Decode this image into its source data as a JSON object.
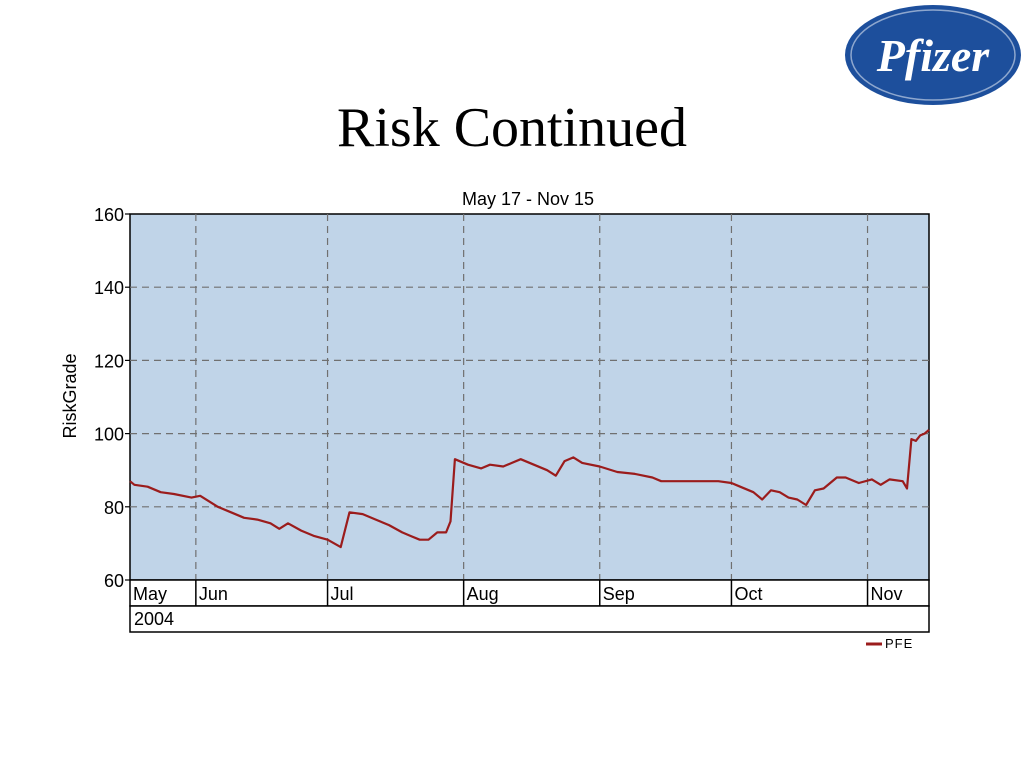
{
  "slide": {
    "title": "Risk Continued",
    "logo_text": "Pfizer",
    "logo_color": "#1d4f9c"
  },
  "chart_data": {
    "type": "line",
    "title": "May 17  -  Nov 15",
    "ylabel": "RiskGrade",
    "xlabel": "",
    "ylim": [
      60,
      160
    ],
    "yticks": [
      60,
      80,
      100,
      120,
      140,
      160
    ],
    "grid": true,
    "plot_background": "#c0d4e8",
    "legend_position": "bottom-right",
    "x_range": [
      "2004-05-17",
      "2004-11-15"
    ],
    "month_labels": [
      {
        "label": "May",
        "date": "2004-05-17"
      },
      {
        "label": "Jun",
        "date": "2004-06-01"
      },
      {
        "label": "Jul",
        "date": "2004-07-01"
      },
      {
        "label": "Aug",
        "date": "2004-08-01"
      },
      {
        "label": "Sep",
        "date": "2004-09-01"
      },
      {
        "label": "Oct",
        "date": "2004-10-01"
      },
      {
        "label": "Nov",
        "date": "2004-11-01"
      }
    ],
    "year_label": "2004",
    "series": [
      {
        "name": "PFE",
        "color": "#9b1c1c",
        "points": [
          [
            "2004-05-17",
            87
          ],
          [
            "2004-05-18",
            86
          ],
          [
            "2004-05-21",
            85.5
          ],
          [
            "2004-05-24",
            84
          ],
          [
            "2004-05-27",
            83.5
          ],
          [
            "2004-05-31",
            82.5
          ],
          [
            "2004-06-02",
            83
          ],
          [
            "2004-06-04",
            81.5
          ],
          [
            "2004-06-06",
            80
          ],
          [
            "2004-06-09",
            78.5
          ],
          [
            "2004-06-12",
            77
          ],
          [
            "2004-06-15",
            76.5
          ],
          [
            "2004-06-18",
            75.5
          ],
          [
            "2004-06-20",
            74
          ],
          [
            "2004-06-22",
            75.5
          ],
          [
            "2004-06-25",
            73.5
          ],
          [
            "2004-06-28",
            72
          ],
          [
            "2004-07-01",
            71
          ],
          [
            "2004-07-04",
            69
          ],
          [
            "2004-07-06",
            78.5
          ],
          [
            "2004-07-09",
            78
          ],
          [
            "2004-07-12",
            76.5
          ],
          [
            "2004-07-15",
            75
          ],
          [
            "2004-07-18",
            73
          ],
          [
            "2004-07-20",
            72
          ],
          [
            "2004-07-22",
            71
          ],
          [
            "2004-07-24",
            71
          ],
          [
            "2004-07-26",
            73
          ],
          [
            "2004-07-28",
            73
          ],
          [
            "2004-07-29",
            76
          ],
          [
            "2004-07-30",
            93
          ],
          [
            "2004-08-02",
            91.5
          ],
          [
            "2004-08-05",
            90.5
          ],
          [
            "2004-08-07",
            91.5
          ],
          [
            "2004-08-10",
            91
          ],
          [
            "2004-08-12",
            92
          ],
          [
            "2004-08-14",
            93
          ],
          [
            "2004-08-17",
            91.5
          ],
          [
            "2004-08-20",
            90
          ],
          [
            "2004-08-22",
            88.5
          ],
          [
            "2004-08-24",
            92.5
          ],
          [
            "2004-08-26",
            93.5
          ],
          [
            "2004-08-28",
            92
          ],
          [
            "2004-09-01",
            91
          ],
          [
            "2004-09-05",
            89.5
          ],
          [
            "2004-09-09",
            89
          ],
          [
            "2004-09-13",
            88
          ],
          [
            "2004-09-15",
            87
          ],
          [
            "2004-09-18",
            87
          ],
          [
            "2004-09-22",
            87
          ],
          [
            "2004-09-28",
            87
          ],
          [
            "2004-10-01",
            86.5
          ],
          [
            "2004-10-03",
            85.5
          ],
          [
            "2004-10-06",
            84
          ],
          [
            "2004-10-08",
            82
          ],
          [
            "2004-10-10",
            84.5
          ],
          [
            "2004-10-12",
            84
          ],
          [
            "2004-10-14",
            82.5
          ],
          [
            "2004-10-16",
            82
          ],
          [
            "2004-10-18",
            80.5
          ],
          [
            "2004-10-20",
            84.5
          ],
          [
            "2004-10-22",
            85
          ],
          [
            "2004-10-25",
            88
          ],
          [
            "2004-10-27",
            88
          ],
          [
            "2004-10-30",
            86.5
          ],
          [
            "2004-11-02",
            87.5
          ],
          [
            "2004-11-04",
            86
          ],
          [
            "2004-11-06",
            87.5
          ],
          [
            "2004-11-09",
            87
          ],
          [
            "2004-11-10",
            85
          ],
          [
            "2004-11-11",
            98.5
          ],
          [
            "2004-11-12",
            98
          ],
          [
            "2004-11-13",
            99.5
          ],
          [
            "2004-11-14",
            100
          ],
          [
            "2004-11-15",
            101
          ]
        ]
      }
    ]
  }
}
